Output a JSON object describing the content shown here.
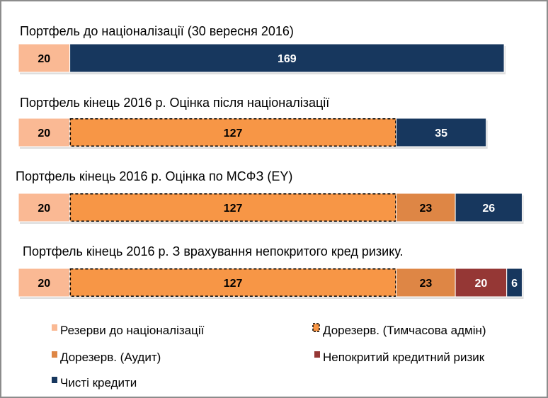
{
  "chart_data": {
    "type": "bar",
    "orientation": "horizontal",
    "stacked": true,
    "series": [
      {
        "name": "Резерви до націоналізації",
        "color": "#FAB994",
        "dashed": false,
        "text_color": "#000000"
      },
      {
        "name": "Дорезерв. (Тимчасова адмін)",
        "color": "#F79646",
        "dashed": true,
        "text_color": "#000000"
      },
      {
        "name": "Дорезерв. (Аудит)",
        "color": "#DE8645",
        "dashed": false,
        "text_color": "#000000"
      },
      {
        "name": "Непокритий кредитний ризик",
        "color": "#953735",
        "dashed": false,
        "text_color": "#FFFFFF"
      },
      {
        "name": "Чисті кредити",
        "color": "#17375E",
        "dashed": false,
        "text_color": "#FFFFFF"
      }
    ],
    "bars": [
      {
        "title": "Портфель  до націоналізації (30 вересня 2016)",
        "values": [
          20,
          0,
          0,
          0,
          169
        ]
      },
      {
        "title": "Портфель  кінець 2016 р. Оцінка після націоналізації",
        "values": [
          20,
          127,
          0,
          0,
          35
        ]
      },
      {
        "title": "Портфель  кінець 2016 р. Оцінка по МСФЗ (EY)",
        "values": [
          20,
          127,
          23,
          0,
          26
        ]
      },
      {
        "title": "Портфель  кінець 2016 р. З врахування непокритого кред ризику.",
        "values": [
          20,
          127,
          23,
          20,
          6
        ]
      }
    ],
    "legend_position": "bottom",
    "grid": false
  }
}
